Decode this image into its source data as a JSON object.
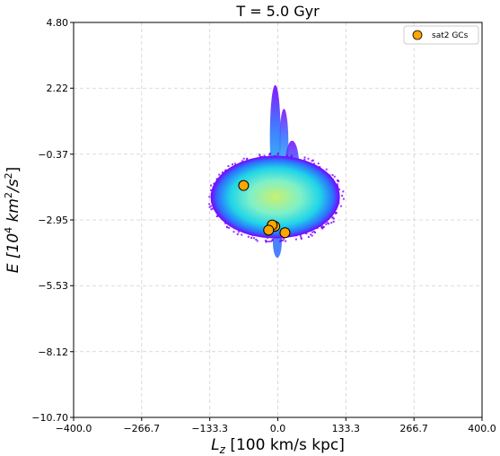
{
  "chart_data": {
    "type": "scatter",
    "title": "T = 5.0 Gyr",
    "xlabel": {
      "base": "L",
      "sub": "z",
      "rest": " [100 km/s kpc]"
    },
    "ylabel": {
      "prefix": "E [10",
      "sup1": "4",
      "mid": " km",
      "sup2": "2",
      "mid2": "/s",
      "sup3": "2",
      "suffix": "]"
    },
    "xlim": [
      -400.0,
      400.0
    ],
    "ylim": [
      -10.7,
      4.8
    ],
    "xticks": [
      -400.0,
      -266.7,
      -133.3,
      0.0,
      133.3,
      266.7,
      400.0
    ],
    "xtick_labels": [
      "−400.0",
      "−266.7",
      "−133.3",
      "0.0",
      "133.3",
      "266.7",
      "400.0"
    ],
    "yticks": [
      4.8,
      2.22,
      -0.37,
      -2.95,
      -5.53,
      -8.12,
      -10.7
    ],
    "ytick_labels": [
      "4.80",
      "2.22",
      "−0.37",
      "−2.95",
      "−5.53",
      "−8.12",
      "−10.70"
    ],
    "grid": true,
    "legend_position": "top-right",
    "series": [
      {
        "name": "sat2 GCs",
        "color": "#ffa500",
        "edge_color": "#000000",
        "x": [
          -67,
          -6,
          -11,
          14,
          -18
        ],
        "y": [
          -1.6,
          -3.2,
          -3.15,
          -3.45,
          -3.35
        ]
      }
    ],
    "density_colors": [
      "#7b00ff",
      "#2e6cff",
      "#1fd4e8",
      "#7ff0c8",
      "#c8f070"
    ]
  }
}
